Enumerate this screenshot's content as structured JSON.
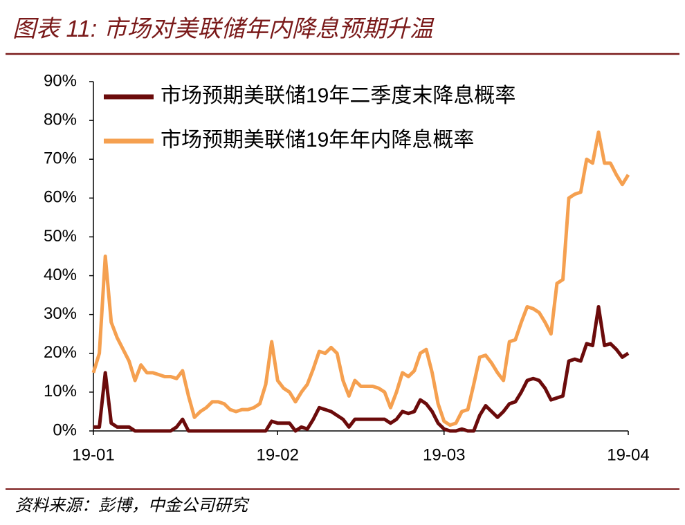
{
  "chart_data": {
    "type": "line",
    "title": "图表 11: 市场对美联储年内降息预期升温",
    "source": "资料来源：彭博，中金公司研究",
    "categories": [
      "19-01",
      null,
      null,
      null,
      null,
      null,
      null,
      null,
      null,
      null,
      null,
      null,
      null,
      null,
      null,
      null,
      null,
      null,
      null,
      null,
      null,
      null,
      null,
      null,
      null,
      null,
      null,
      null,
      null,
      null,
      null,
      "19-02",
      null,
      null,
      null,
      null,
      null,
      null,
      null,
      null,
      null,
      null,
      null,
      null,
      null,
      null,
      null,
      null,
      null,
      null,
      null,
      null,
      null,
      null,
      null,
      null,
      null,
      null,
      null,
      "19-03",
      null,
      null,
      null,
      null,
      null,
      null,
      null,
      null,
      null,
      null,
      null,
      null,
      null,
      null,
      null,
      null,
      null,
      null,
      null,
      null,
      null,
      null,
      null,
      null,
      null,
      null,
      null,
      null,
      null,
      null,
      "19-04"
    ],
    "series": [
      {
        "name": "市场预期美联储19年二季度末降息概率",
        "color": "#6b0b0b",
        "values": [
          1,
          1,
          15,
          2,
          1,
          1,
          1,
          0,
          0,
          0,
          0,
          0,
          0,
          0,
          1,
          3,
          0,
          0,
          0,
          0,
          0,
          0,
          0,
          0,
          0,
          0,
          0,
          0,
          0,
          0,
          2.5,
          2,
          2,
          2,
          0,
          1,
          0.5,
          3,
          6,
          5.5,
          5,
          4,
          3,
          1,
          3,
          3,
          3,
          3,
          3,
          3,
          2,
          3,
          5,
          4.5,
          5,
          8,
          7,
          5,
          2,
          0.5,
          0,
          0,
          0.5,
          0,
          0,
          4,
          6.5,
          5,
          3.5,
          5,
          7,
          7.5,
          10,
          13,
          13.5,
          13,
          11,
          8,
          8.5,
          9,
          18,
          18.5,
          18,
          22.5,
          22,
          32,
          22,
          22.5,
          21,
          19,
          20
        ]
      },
      {
        "name": "市场预期美联储19年年内降息概率",
        "color": "#f5a050",
        "values": [
          15,
          20,
          45,
          28,
          24,
          21,
          18,
          13,
          17,
          15,
          15,
          14.5,
          14,
          14,
          13.5,
          15.5,
          9,
          3.5,
          5,
          6,
          7.5,
          7.5,
          7,
          5.5,
          5,
          5.5,
          5.5,
          6,
          7,
          12,
          23,
          13,
          11,
          10,
          7.5,
          10,
          12,
          16,
          20.5,
          20,
          21.5,
          20,
          13,
          9,
          13,
          11.5,
          11.5,
          11.5,
          11,
          10,
          6,
          10,
          15,
          14,
          15.5,
          20,
          21,
          15,
          7,
          2.5,
          1.5,
          2,
          5,
          5.5,
          12,
          19,
          19.5,
          17.5,
          15,
          13,
          23,
          23.5,
          28,
          32,
          31.5,
          30.5,
          28,
          25,
          38,
          39,
          60,
          61,
          61.5,
          70,
          69,
          77,
          69,
          69,
          66,
          63.5,
          66
        ]
      }
    ],
    "ylim": [
      0,
      90
    ],
    "yticks": [
      {
        "value": 0,
        "label": "0%"
      },
      {
        "value": 10,
        "label": "10%"
      },
      {
        "value": 20,
        "label": "20%"
      },
      {
        "value": 30,
        "label": "30%"
      },
      {
        "value": 40,
        "label": "40%"
      },
      {
        "value": 50,
        "label": "50%"
      },
      {
        "value": 60,
        "label": "60%"
      },
      {
        "value": 70,
        "label": "70%"
      },
      {
        "value": 80,
        "label": "80%"
      },
      {
        "value": 90,
        "label": "90%"
      }
    ],
    "grid": false,
    "legend": "top-left"
  }
}
